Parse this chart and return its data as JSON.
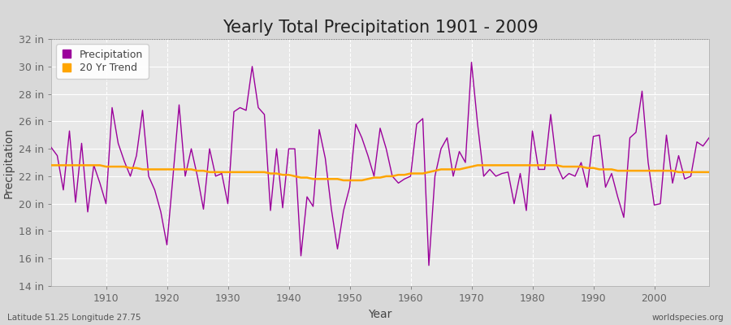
{
  "title": "Yearly Total Precipitation 1901 - 2009",
  "xlabel": "Year",
  "ylabel": "Precipitation",
  "bottom_left": "Latitude 51.25 Longitude 27.75",
  "bottom_right": "worldspecies.org",
  "ylim": [
    14,
    32
  ],
  "yticks": [
    14,
    16,
    18,
    20,
    22,
    24,
    26,
    28,
    30,
    32
  ],
  "ytick_labels": [
    "14 in",
    "16 in",
    "18 in",
    "20 in",
    "22 in",
    "24 in",
    "26 in",
    "28 in",
    "30 in",
    "32 in"
  ],
  "years": [
    1901,
    1902,
    1903,
    1904,
    1905,
    1906,
    1907,
    1908,
    1909,
    1910,
    1911,
    1912,
    1913,
    1914,
    1915,
    1916,
    1917,
    1918,
    1919,
    1920,
    1921,
    1922,
    1923,
    1924,
    1925,
    1926,
    1927,
    1928,
    1929,
    1930,
    1931,
    1932,
    1933,
    1934,
    1935,
    1936,
    1937,
    1938,
    1939,
    1940,
    1941,
    1942,
    1943,
    1944,
    1945,
    1946,
    1947,
    1948,
    1949,
    1950,
    1951,
    1952,
    1953,
    1954,
    1955,
    1956,
    1957,
    1958,
    1959,
    1960,
    1961,
    1962,
    1963,
    1964,
    1965,
    1966,
    1967,
    1968,
    1969,
    1970,
    1971,
    1972,
    1973,
    1974,
    1975,
    1976,
    1977,
    1978,
    1979,
    1980,
    1981,
    1982,
    1983,
    1984,
    1985,
    1986,
    1987,
    1988,
    1989,
    1990,
    1991,
    1992,
    1993,
    1994,
    1995,
    1996,
    1997,
    1998,
    1999,
    2000,
    2001,
    2002,
    2003,
    2004,
    2005,
    2006,
    2007,
    2008,
    2009
  ],
  "precip": [
    24.1,
    23.5,
    21.0,
    25.3,
    20.1,
    24.4,
    19.4,
    22.8,
    21.5,
    20.0,
    27.0,
    24.4,
    23.1,
    22.0,
    23.5,
    26.8,
    22.0,
    21.0,
    19.4,
    17.0,
    22.0,
    27.2,
    22.0,
    24.0,
    22.0,
    19.6,
    24.0,
    22.0,
    22.2,
    20.0,
    26.7,
    27.0,
    26.8,
    30.0,
    27.0,
    26.5,
    19.5,
    24.0,
    19.7,
    24.0,
    24.0,
    16.2,
    20.5,
    19.8,
    25.4,
    23.3,
    19.6,
    16.7,
    19.5,
    21.2,
    25.8,
    24.8,
    23.5,
    22.0,
    25.5,
    24.0,
    22.0,
    21.5,
    21.8,
    22.0,
    25.8,
    26.2,
    15.5,
    22.0,
    24.0,
    24.8,
    22.0,
    23.8,
    23.0,
    30.3,
    25.8,
    22.0,
    22.5,
    22.0,
    22.2,
    22.3,
    20.0,
    22.2,
    19.5,
    25.3,
    22.5,
    22.5,
    26.5,
    22.8,
    21.8,
    22.2,
    22.0,
    23.0,
    21.2,
    24.9,
    25.0,
    21.2,
    22.2,
    20.5,
    19.0,
    24.8,
    25.2,
    28.2,
    23.0,
    19.9,
    20.0,
    25.0,
    21.5,
    23.5,
    21.8,
    22.0,
    24.5,
    24.2,
    24.8
  ],
  "trend": [
    22.8,
    22.8,
    22.8,
    22.8,
    22.8,
    22.8,
    22.8,
    22.8,
    22.8,
    22.7,
    22.7,
    22.7,
    22.7,
    22.6,
    22.6,
    22.5,
    22.5,
    22.5,
    22.5,
    22.5,
    22.5,
    22.5,
    22.5,
    22.5,
    22.4,
    22.4,
    22.3,
    22.3,
    22.3,
    22.3,
    22.3,
    22.3,
    22.3,
    22.3,
    22.3,
    22.3,
    22.2,
    22.2,
    22.1,
    22.1,
    22.0,
    21.9,
    21.9,
    21.8,
    21.8,
    21.8,
    21.8,
    21.8,
    21.7,
    21.7,
    21.7,
    21.7,
    21.8,
    21.9,
    21.9,
    22.0,
    22.0,
    22.1,
    22.1,
    22.2,
    22.2,
    22.2,
    22.3,
    22.4,
    22.5,
    22.5,
    22.5,
    22.5,
    22.6,
    22.7,
    22.8,
    22.8,
    22.8,
    22.8,
    22.8,
    22.8,
    22.8,
    22.8,
    22.8,
    22.8,
    22.8,
    22.8,
    22.8,
    22.8,
    22.7,
    22.7,
    22.7,
    22.7,
    22.6,
    22.6,
    22.5,
    22.5,
    22.5,
    22.4,
    22.4,
    22.4,
    22.4,
    22.4,
    22.4,
    22.4,
    22.4,
    22.4,
    22.4,
    22.3,
    22.3,
    22.3,
    22.3,
    22.3,
    22.3
  ],
  "precip_color": "#9B009B",
  "trend_color": "#FFA500",
  "bg_color": "#d8d8d8",
  "plot_bg_color": "#e8e8e8",
  "grid_color": "#ffffff",
  "title_fontsize": 15,
  "label_fontsize": 10,
  "tick_fontsize": 9,
  "legend_labels": [
    "Precipitation",
    "20 Yr Trend"
  ],
  "legend_marker_color_precip": "#9B009B",
  "legend_marker_color_trend": "#FFA500"
}
